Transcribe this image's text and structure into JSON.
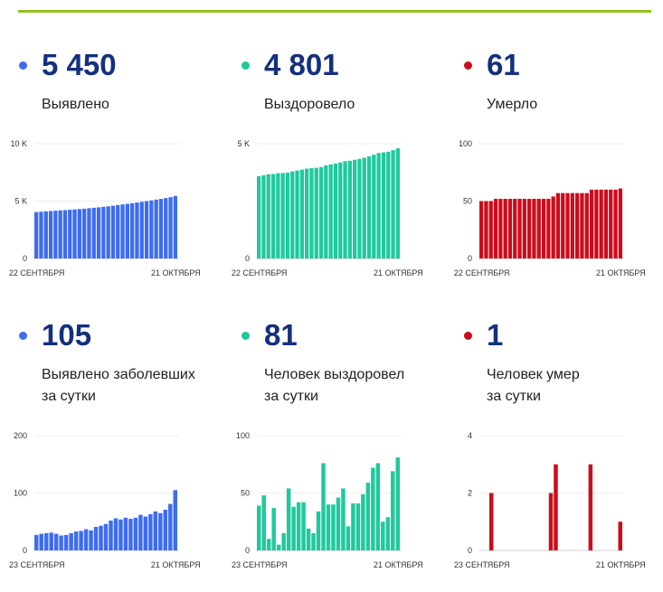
{
  "accent_line_color": "#8fc31f",
  "number_color": "#14307d",
  "panels": [
    {
      "dot_color": "#3d6cf0",
      "value": "5 450",
      "label_lines": [
        "Выявлено"
      ]
    },
    {
      "dot_color": "#1fc99e",
      "value": "4 801",
      "label_lines": [
        "Выздоровело"
      ]
    },
    {
      "dot_color": "#cc0c1c",
      "value": "61",
      "label_lines": [
        "Умерло"
      ]
    },
    {
      "dot_color": "#3d6cf0",
      "value": "105",
      "label_lines": [
        "Выявлено заболевших",
        "за сутки"
      ]
    },
    {
      "dot_color": "#1fc99e",
      "value": "81",
      "label_lines": [
        "Человек выздоровел",
        "за сутки"
      ]
    },
    {
      "dot_color": "#cc0c1c",
      "value": "1",
      "label_lines": [
        "Человек умер",
        "за сутки"
      ]
    }
  ],
  "chart_data": [
    {
      "type": "bar",
      "color": "#3d6cf0",
      "ylim": [
        0,
        10000
      ],
      "y_ticks": [
        0,
        5000,
        10000
      ],
      "y_tick_labels": [
        "0",
        "5 K",
        "10 K"
      ],
      "x_tick_labels": [
        "22 СЕНТЯБРЯ",
        "21 ОКТЯБРЯ"
      ],
      "grid": true,
      "values": [
        4047,
        4074,
        4103,
        4133,
        4164,
        4193,
        4219,
        4246,
        4276,
        4309,
        4343,
        4380,
        4415,
        4456,
        4499,
        4545,
        4597,
        4653,
        4707,
        4764,
        4819,
        4876,
        4938,
        4997,
        5060,
        5128,
        5193,
        5264,
        5345,
        5450
      ]
    },
    {
      "type": "bar",
      "color": "#1fc99e",
      "ylim": [
        0,
        5000
      ],
      "y_ticks": [
        0,
        5000
      ],
      "y_tick_labels": [
        "0",
        "5 K"
      ],
      "x_tick_labels": [
        "22 СЕНТЯБРЯ",
        "21 ОКТЯБРЯ"
      ],
      "grid": true,
      "values": [
        3584,
        3623,
        3671,
        3681,
        3718,
        3723,
        3738,
        3792,
        3830,
        3872,
        3914,
        3933,
        3948,
        3982,
        4058,
        4098,
        4138,
        4184,
        4238,
        4259,
        4300,
        4341,
        4390,
        4449,
        4521,
        4597,
        4622,
        4651,
        4720,
        4801
      ]
    },
    {
      "type": "bar",
      "color": "#cc0c1c",
      "ylim": [
        0,
        100
      ],
      "y_ticks": [
        0,
        50,
        100
      ],
      "y_tick_labels": [
        "0",
        "50",
        "100"
      ],
      "x_tick_labels": [
        "22 СЕНТЯБРЯ",
        "21 ОКТЯБРЯ"
      ],
      "grid": true,
      "values": [
        50,
        50,
        50,
        52,
        52,
        52,
        52,
        52,
        52,
        52,
        52,
        52,
        52,
        52,
        52,
        54,
        57,
        57,
        57,
        57,
        57,
        57,
        57,
        60,
        60,
        60,
        60,
        60,
        60,
        61
      ]
    },
    {
      "type": "bar",
      "color": "#3d6cf0",
      "ylim": [
        0,
        200
      ],
      "y_ticks": [
        0,
        100,
        200
      ],
      "y_tick_labels": [
        "0",
        "100",
        "200"
      ],
      "x_tick_labels": [
        "23 СЕНТЯБРЯ",
        "21 ОКТЯБРЯ"
      ],
      "grid": true,
      "values": [
        27,
        29,
        30,
        31,
        29,
        26,
        27,
        30,
        33,
        34,
        37,
        35,
        41,
        43,
        46,
        52,
        56,
        54,
        57,
        55,
        57,
        62,
        59,
        63,
        68,
        65,
        71,
        81,
        105
      ]
    },
    {
      "type": "bar",
      "color": "#1fc99e",
      "ylim": [
        0,
        100
      ],
      "y_ticks": [
        0,
        50,
        100
      ],
      "y_tick_labels": [
        "0",
        "50",
        "100"
      ],
      "x_tick_labels": [
        "23 СЕНТЯБРЯ",
        "21 ОКТЯБРЯ"
      ],
      "grid": true,
      "values": [
        39,
        48,
        10,
        37,
        5,
        15,
        54,
        38,
        42,
        42,
        19,
        15,
        34,
        76,
        40,
        40,
        46,
        54,
        21,
        41,
        41,
        49,
        59,
        72,
        76,
        25,
        29,
        69,
        81
      ]
    },
    {
      "type": "bar",
      "color": "#cc0c1c",
      "ylim": [
        0,
        4
      ],
      "y_ticks": [
        0,
        2,
        4
      ],
      "y_tick_labels": [
        "0",
        "2",
        "4"
      ],
      "x_tick_labels": [
        "23 СЕНТЯБРЯ",
        "21 ОКТЯБРЯ"
      ],
      "grid": true,
      "values": [
        0,
        0,
        2,
        0,
        0,
        0,
        0,
        0,
        0,
        0,
        0,
        0,
        0,
        0,
        2,
        3,
        0,
        0,
        0,
        0,
        0,
        0,
        3,
        0,
        0,
        0,
        0,
        0,
        1
      ]
    }
  ]
}
